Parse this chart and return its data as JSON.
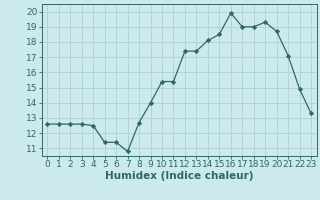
{
  "x": [
    0,
    1,
    2,
    3,
    4,
    5,
    6,
    7,
    8,
    9,
    10,
    11,
    12,
    13,
    14,
    15,
    16,
    17,
    18,
    19,
    20,
    21,
    22,
    23
  ],
  "y": [
    12.6,
    12.6,
    12.6,
    12.6,
    12.5,
    11.4,
    11.4,
    10.8,
    12.7,
    14.0,
    15.4,
    15.4,
    17.4,
    17.4,
    18.1,
    18.5,
    19.9,
    19.0,
    19.0,
    19.3,
    18.7,
    17.1,
    14.9,
    13.3
  ],
  "line_color": "#2e6b5e",
  "marker": "D",
  "marker_size": 2.2,
  "bg_color": "#cce9ed",
  "grid_color": "#b0d4d8",
  "tick_color": "#2e6b5e",
  "xlabel": "Humidex (Indice chaleur)",
  "xlim": [
    -0.5,
    23.5
  ],
  "ylim": [
    10.5,
    20.5
  ],
  "yticks": [
    11,
    12,
    13,
    14,
    15,
    16,
    17,
    18,
    19,
    20
  ],
  "xticks": [
    0,
    1,
    2,
    3,
    4,
    5,
    6,
    7,
    8,
    9,
    10,
    11,
    12,
    13,
    14,
    15,
    16,
    17,
    18,
    19,
    20,
    21,
    22,
    23
  ],
  "tick_labelsize": 6.5,
  "xlabel_fontsize": 7.5
}
